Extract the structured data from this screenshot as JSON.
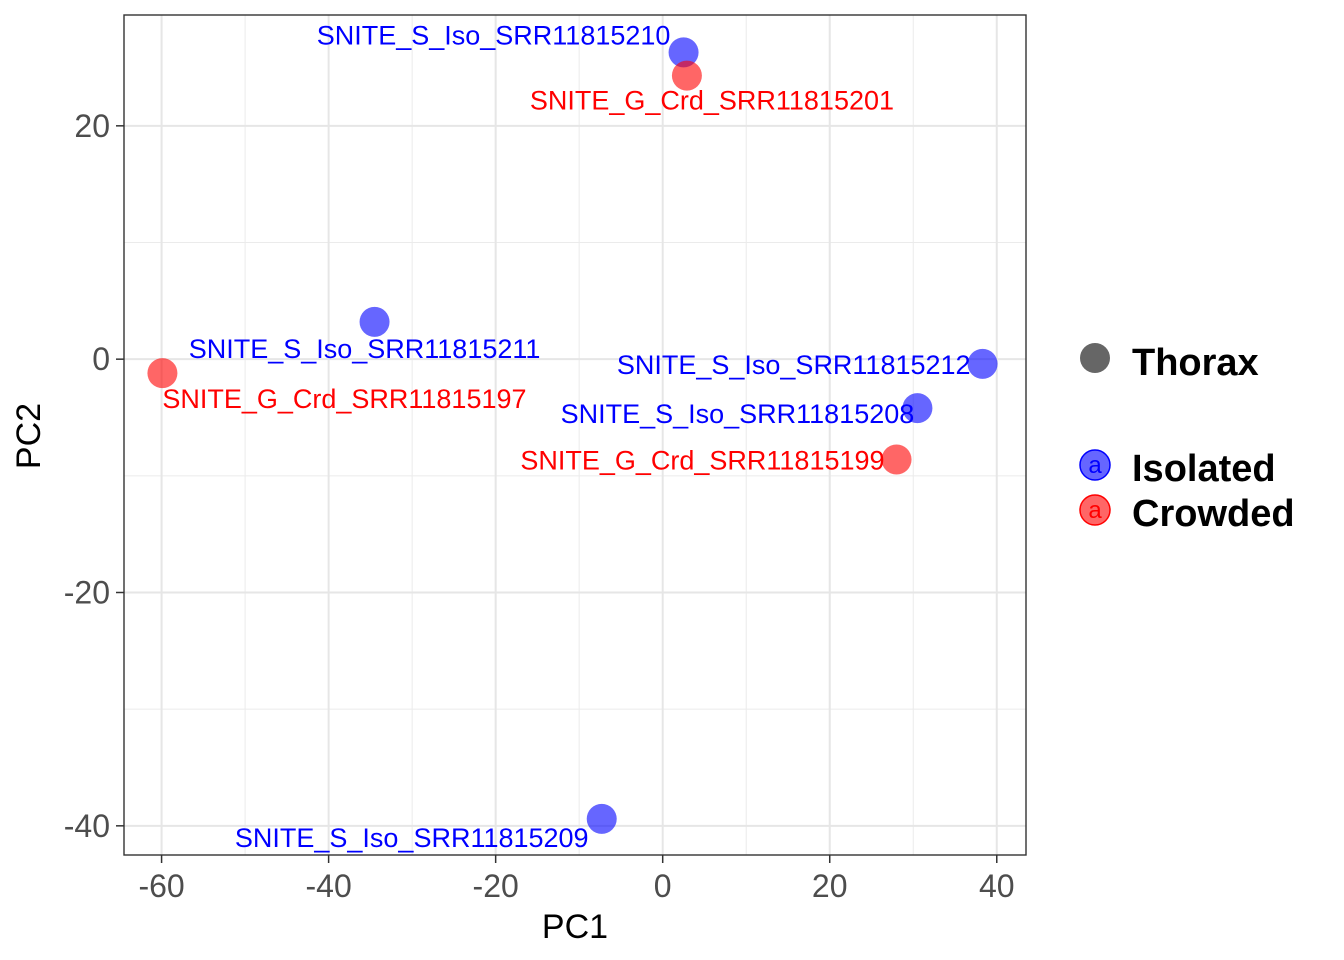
{
  "chart_data": {
    "type": "scatter",
    "xlabel": "PC1",
    "ylabel": "PC2",
    "xlim": [
      -64.5,
      43.5
    ],
    "ylim": [
      -42.5,
      29.5
    ],
    "x_ticks": [
      -60,
      -40,
      -20,
      0,
      20,
      40
    ],
    "y_ticks": [
      -40,
      -20,
      0,
      20
    ],
    "x_tick_labels": [
      "-60",
      "-40",
      "-20",
      "0",
      "20",
      "40"
    ],
    "y_tick_labels": [
      "-40",
      "-20",
      "0",
      "20"
    ],
    "grid": true,
    "colors": {
      "Isolated": "#0000ff",
      "Crowded": "#ff0000"
    },
    "legend": {
      "position": "right",
      "shape_title": "Thorax",
      "shape_color": "#666666",
      "groups": [
        {
          "name": "Isolated",
          "color": "#0000ff",
          "glyph": "a"
        },
        {
          "name": "Crowded",
          "color": "#ff0000",
          "glyph": "a"
        }
      ]
    },
    "points": [
      {
        "name": "SNITE_S_Iso_SRR11815210",
        "group": "Isolated",
        "x": 2.5,
        "y": 26.3,
        "label_pos": "above-left"
      },
      {
        "name": "SNITE_G_Crd_SRR11815201",
        "group": "Crowded",
        "x": 2.9,
        "y": 24.3,
        "label_pos": "below-right"
      },
      {
        "name": "SNITE_S_Iso_SRR11815211",
        "group": "Isolated",
        "x": -34.5,
        "y": 3.2,
        "label_pos": "below"
      },
      {
        "name": "SNITE_G_Crd_SRR11815197",
        "group": "Crowded",
        "x": -59.9,
        "y": -1.2,
        "label_pos": "below-right"
      },
      {
        "name": "SNITE_S_Iso_SRR11815212",
        "group": "Isolated",
        "x": 38.3,
        "y": -0.4,
        "label_pos": "left"
      },
      {
        "name": "SNITE_S_Iso_SRR11815208",
        "group": "Isolated",
        "x": 30.5,
        "y": -4.2,
        "label_pos": "below-left"
      },
      {
        "name": "SNITE_G_Crd_SRR11815199",
        "group": "Crowded",
        "x": 28.0,
        "y": -8.6,
        "label_pos": "left"
      },
      {
        "name": "SNITE_S_Iso_SRR11815209",
        "group": "Isolated",
        "x": -7.3,
        "y": -39.4,
        "label_pos": "below-left"
      }
    ]
  }
}
